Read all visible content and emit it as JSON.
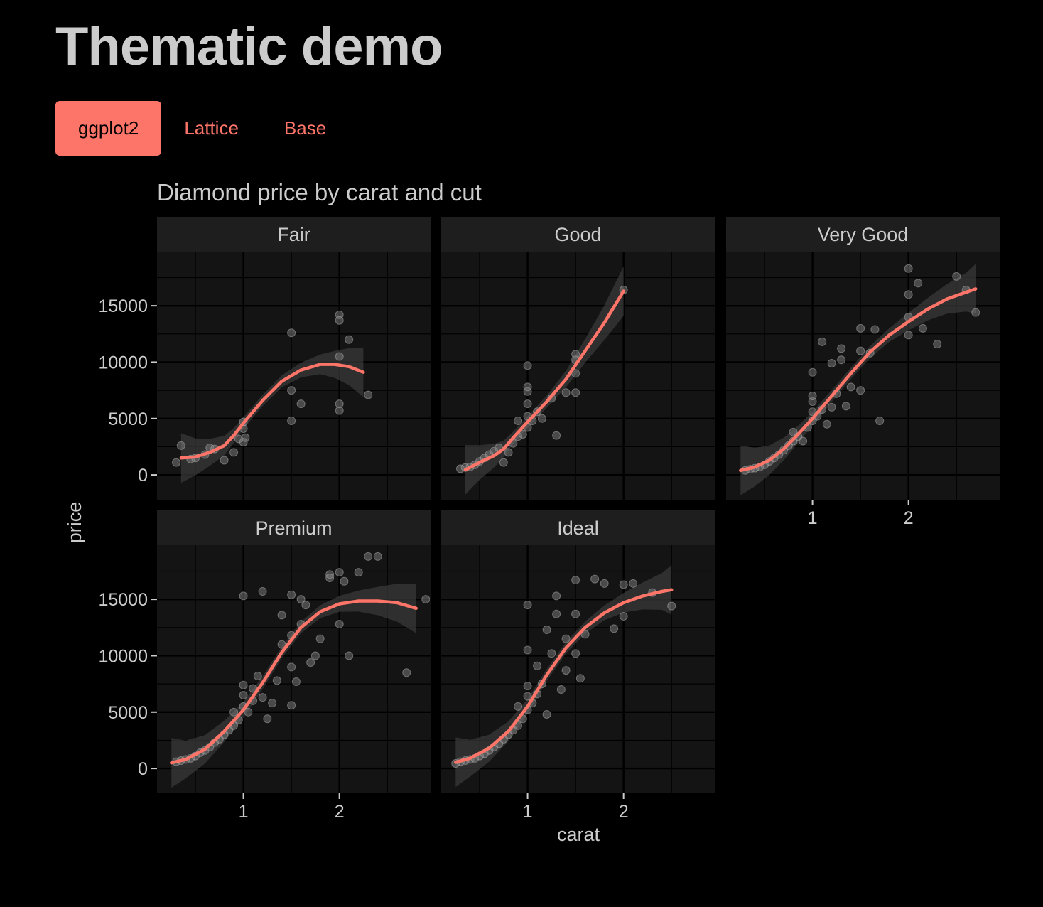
{
  "page": {
    "title": "Thematic demo"
  },
  "tabs": [
    {
      "label": "ggplot2",
      "active": true
    },
    {
      "label": "Lattice",
      "active": false
    },
    {
      "label": "Base",
      "active": false
    }
  ],
  "colors": {
    "background": "#000000",
    "panel": "#141414",
    "strip": "#1e1e1e",
    "accent": "#fd7569",
    "text": "#cccccc",
    "point": "#8c8c8c"
  },
  "chart_data": {
    "type": "scatter",
    "title": "Diamond price by carat and cut",
    "xlabel": "carat",
    "ylabel": "price",
    "xlim": [
      0.1,
      2.95
    ],
    "ylim": [
      -2200,
      19800
    ],
    "xticks": [
      1,
      2
    ],
    "xtick_labels": [
      "1",
      "2"
    ],
    "yticks": [
      0,
      5000,
      10000,
      15000
    ],
    "ytick_labels": [
      "0",
      "5000",
      "10000",
      "15000"
    ],
    "grid": true,
    "facets": [
      {
        "name": "Fair",
        "points": [
          [
            0.3,
            1100
          ],
          [
            0.35,
            2600
          ],
          [
            0.45,
            1400
          ],
          [
            0.5,
            1500
          ],
          [
            0.6,
            1800
          ],
          [
            0.65,
            2400
          ],
          [
            0.7,
            2300
          ],
          [
            0.8,
            1300
          ],
          [
            0.9,
            2000
          ],
          [
            0.95,
            3200
          ],
          [
            1.0,
            4100
          ],
          [
            1.0,
            4700
          ],
          [
            1.02,
            3300
          ],
          [
            1.0,
            2900
          ],
          [
            1.5,
            12600
          ],
          [
            1.5,
            7500
          ],
          [
            1.6,
            6300
          ],
          [
            1.5,
            4800
          ],
          [
            2.0,
            14200
          ],
          [
            2.0,
            13700
          ],
          [
            2.0,
            10500
          ],
          [
            2.0,
            6300
          ],
          [
            2.0,
            5700
          ],
          [
            2.1,
            12000
          ],
          [
            2.3,
            7100
          ]
        ],
        "smooth": [
          [
            0.35,
            1500
          ],
          [
            0.5,
            1600
          ],
          [
            0.65,
            2000
          ],
          [
            0.8,
            2600
          ],
          [
            0.9,
            3500
          ],
          [
            1.0,
            4600
          ],
          [
            1.2,
            6600
          ],
          [
            1.4,
            8300
          ],
          [
            1.6,
            9300
          ],
          [
            1.8,
            9800
          ],
          [
            1.95,
            9800
          ],
          [
            2.1,
            9600
          ],
          [
            2.25,
            9100
          ]
        ]
      },
      {
        "name": "Good",
        "points": [
          [
            0.3,
            550
          ],
          [
            0.35,
            650
          ],
          [
            0.4,
            700
          ],
          [
            0.45,
            900
          ],
          [
            0.5,
            1200
          ],
          [
            0.55,
            1500
          ],
          [
            0.6,
            1800
          ],
          [
            0.65,
            2100
          ],
          [
            0.7,
            2400
          ],
          [
            0.75,
            1100
          ],
          [
            0.8,
            2000
          ],
          [
            0.85,
            2800
          ],
          [
            0.9,
            3400
          ],
          [
            0.9,
            4800
          ],
          [
            0.95,
            3600
          ],
          [
            1.0,
            4200
          ],
          [
            1.0,
            5200
          ],
          [
            1.0,
            6300
          ],
          [
            1.0,
            7400
          ],
          [
            1.0,
            7800
          ],
          [
            1.0,
            9700
          ],
          [
            1.05,
            4800
          ],
          [
            1.1,
            5600
          ],
          [
            1.15,
            5000
          ],
          [
            1.25,
            6800
          ],
          [
            1.3,
            3500
          ],
          [
            1.4,
            7300
          ],
          [
            1.5,
            10200
          ],
          [
            1.5,
            10700
          ],
          [
            1.5,
            9000
          ],
          [
            1.5,
            7300
          ],
          [
            2.0,
            16400
          ]
        ],
        "smooth": [
          [
            0.35,
            450
          ],
          [
            0.5,
            1100
          ],
          [
            0.65,
            1700
          ],
          [
            0.75,
            2300
          ],
          [
            0.85,
            3300
          ],
          [
            1.0,
            4700
          ],
          [
            1.2,
            6500
          ],
          [
            1.4,
            8500
          ],
          [
            1.6,
            11000
          ],
          [
            1.8,
            13500
          ],
          [
            2.0,
            16300
          ]
        ]
      },
      {
        "name": "Very Good",
        "points": [
          [
            0.3,
            400
          ],
          [
            0.35,
            500
          ],
          [
            0.4,
            600
          ],
          [
            0.45,
            700
          ],
          [
            0.5,
            900
          ],
          [
            0.55,
            1200
          ],
          [
            0.6,
            1500
          ],
          [
            0.65,
            1800
          ],
          [
            0.7,
            2200
          ],
          [
            0.75,
            2600
          ],
          [
            0.8,
            3000
          ],
          [
            0.8,
            3800
          ],
          [
            0.85,
            3400
          ],
          [
            0.9,
            3000
          ],
          [
            0.95,
            4200
          ],
          [
            1.0,
            4800
          ],
          [
            1.0,
            5600
          ],
          [
            1.0,
            6500
          ],
          [
            1.0,
            7000
          ],
          [
            1.0,
            9100
          ],
          [
            1.05,
            5200
          ],
          [
            1.1,
            5800
          ],
          [
            1.1,
            11800
          ],
          [
            1.15,
            4500
          ],
          [
            1.2,
            6000
          ],
          [
            1.2,
            9900
          ],
          [
            1.25,
            7200
          ],
          [
            1.3,
            10200
          ],
          [
            1.3,
            11200
          ],
          [
            1.35,
            6100
          ],
          [
            1.4,
            7800
          ],
          [
            1.5,
            7500
          ],
          [
            1.5,
            11000
          ],
          [
            1.5,
            13000
          ],
          [
            1.6,
            10800
          ],
          [
            1.65,
            12900
          ],
          [
            1.7,
            4800
          ],
          [
            2.0,
            18300
          ],
          [
            2.0,
            16000
          ],
          [
            2.0,
            14000
          ],
          [
            2.0,
            12400
          ],
          [
            2.1,
            17000
          ],
          [
            2.15,
            13000
          ],
          [
            2.3,
            11600
          ],
          [
            2.5,
            17600
          ],
          [
            2.6,
            16400
          ],
          [
            2.7,
            14400
          ]
        ],
        "smooth": [
          [
            0.25,
            400
          ],
          [
            0.4,
            700
          ],
          [
            0.55,
            1300
          ],
          [
            0.7,
            2300
          ],
          [
            0.85,
            3600
          ],
          [
            1.0,
            5000
          ],
          [
            1.2,
            7000
          ],
          [
            1.4,
            9000
          ],
          [
            1.6,
            10900
          ],
          [
            1.8,
            12400
          ],
          [
            2.0,
            13600
          ],
          [
            2.2,
            14700
          ],
          [
            2.4,
            15600
          ],
          [
            2.6,
            16200
          ],
          [
            2.7,
            16500
          ]
        ]
      },
      {
        "name": "Premium",
        "points": [
          [
            0.3,
            600
          ],
          [
            0.35,
            700
          ],
          [
            0.4,
            800
          ],
          [
            0.45,
            900
          ],
          [
            0.5,
            1100
          ],
          [
            0.55,
            1400
          ],
          [
            0.6,
            1600
          ],
          [
            0.65,
            1900
          ],
          [
            0.7,
            2300
          ],
          [
            0.75,
            2600
          ],
          [
            0.8,
            3000
          ],
          [
            0.85,
            3400
          ],
          [
            0.9,
            3800
          ],
          [
            0.9,
            5000
          ],
          [
            0.95,
            4300
          ],
          [
            1.0,
            5500
          ],
          [
            1.0,
            6500
          ],
          [
            1.0,
            7400
          ],
          [
            1.0,
            15300
          ],
          [
            1.05,
            5000
          ],
          [
            1.1,
            6000
          ],
          [
            1.1,
            7100
          ],
          [
            1.15,
            8200
          ],
          [
            1.2,
            15700
          ],
          [
            1.2,
            6300
          ],
          [
            1.25,
            4400
          ],
          [
            1.3,
            5800
          ],
          [
            1.35,
            7800
          ],
          [
            1.4,
            11000
          ],
          [
            1.4,
            13600
          ],
          [
            1.5,
            15400
          ],
          [
            1.5,
            11800
          ],
          [
            1.5,
            9000
          ],
          [
            1.5,
            5600
          ],
          [
            1.55,
            7700
          ],
          [
            1.6,
            12800
          ],
          [
            1.6,
            15000
          ],
          [
            1.65,
            14500
          ],
          [
            1.7,
            9400
          ],
          [
            1.75,
            10000
          ],
          [
            1.8,
            11500
          ],
          [
            1.9,
            17200
          ],
          [
            1.9,
            16900
          ],
          [
            2.0,
            17400
          ],
          [
            2.0,
            12800
          ],
          [
            2.05,
            16600
          ],
          [
            2.1,
            10000
          ],
          [
            2.2,
            17400
          ],
          [
            2.3,
            18800
          ],
          [
            2.4,
            18800
          ],
          [
            2.7,
            8500
          ],
          [
            2.9,
            15000
          ]
        ],
        "smooth": [
          [
            0.25,
            500
          ],
          [
            0.4,
            800
          ],
          [
            0.6,
            1700
          ],
          [
            0.8,
            3300
          ],
          [
            1.0,
            5200
          ],
          [
            1.2,
            7600
          ],
          [
            1.4,
            10300
          ],
          [
            1.6,
            12500
          ],
          [
            1.8,
            13900
          ],
          [
            2.0,
            14600
          ],
          [
            2.2,
            14850
          ],
          [
            2.4,
            14850
          ],
          [
            2.6,
            14700
          ],
          [
            2.8,
            14200
          ]
        ]
      },
      {
        "name": "Ideal",
        "points": [
          [
            0.25,
            450
          ],
          [
            0.3,
            600
          ],
          [
            0.35,
            700
          ],
          [
            0.4,
            800
          ],
          [
            0.45,
            900
          ],
          [
            0.5,
            1100
          ],
          [
            0.55,
            1300
          ],
          [
            0.6,
            1600
          ],
          [
            0.65,
            1900
          ],
          [
            0.7,
            2200
          ],
          [
            0.75,
            2600
          ],
          [
            0.8,
            3000
          ],
          [
            0.85,
            3400
          ],
          [
            0.9,
            3800
          ],
          [
            0.9,
            5500
          ],
          [
            0.95,
            4400
          ],
          [
            1.0,
            5200
          ],
          [
            1.0,
            6400
          ],
          [
            1.0,
            7300
          ],
          [
            1.0,
            10500
          ],
          [
            1.0,
            14500
          ],
          [
            1.05,
            5800
          ],
          [
            1.1,
            6600
          ],
          [
            1.1,
            9100
          ],
          [
            1.15,
            7500
          ],
          [
            1.2,
            12300
          ],
          [
            1.2,
            4800
          ],
          [
            1.25,
            10200
          ],
          [
            1.3,
            13700
          ],
          [
            1.3,
            15300
          ],
          [
            1.35,
            7000
          ],
          [
            1.4,
            8700
          ],
          [
            1.4,
            11500
          ],
          [
            1.5,
            16700
          ],
          [
            1.5,
            13700
          ],
          [
            1.5,
            10200
          ],
          [
            1.55,
            8000
          ],
          [
            1.6,
            11900
          ],
          [
            1.7,
            16800
          ],
          [
            1.8,
            16400
          ],
          [
            1.9,
            12400
          ],
          [
            2.0,
            16300
          ],
          [
            2.0,
            13500
          ],
          [
            2.1,
            16400
          ],
          [
            2.3,
            15600
          ],
          [
            2.5,
            14400
          ]
        ],
        "smooth": [
          [
            0.25,
            550
          ],
          [
            0.4,
            900
          ],
          [
            0.6,
            1800
          ],
          [
            0.8,
            3300
          ],
          [
            1.0,
            5500
          ],
          [
            1.2,
            8300
          ],
          [
            1.4,
            10700
          ],
          [
            1.6,
            12500
          ],
          [
            1.8,
            13800
          ],
          [
            2.0,
            14700
          ],
          [
            2.2,
            15300
          ],
          [
            2.4,
            15700
          ],
          [
            2.5,
            15850
          ]
        ]
      }
    ]
  }
}
